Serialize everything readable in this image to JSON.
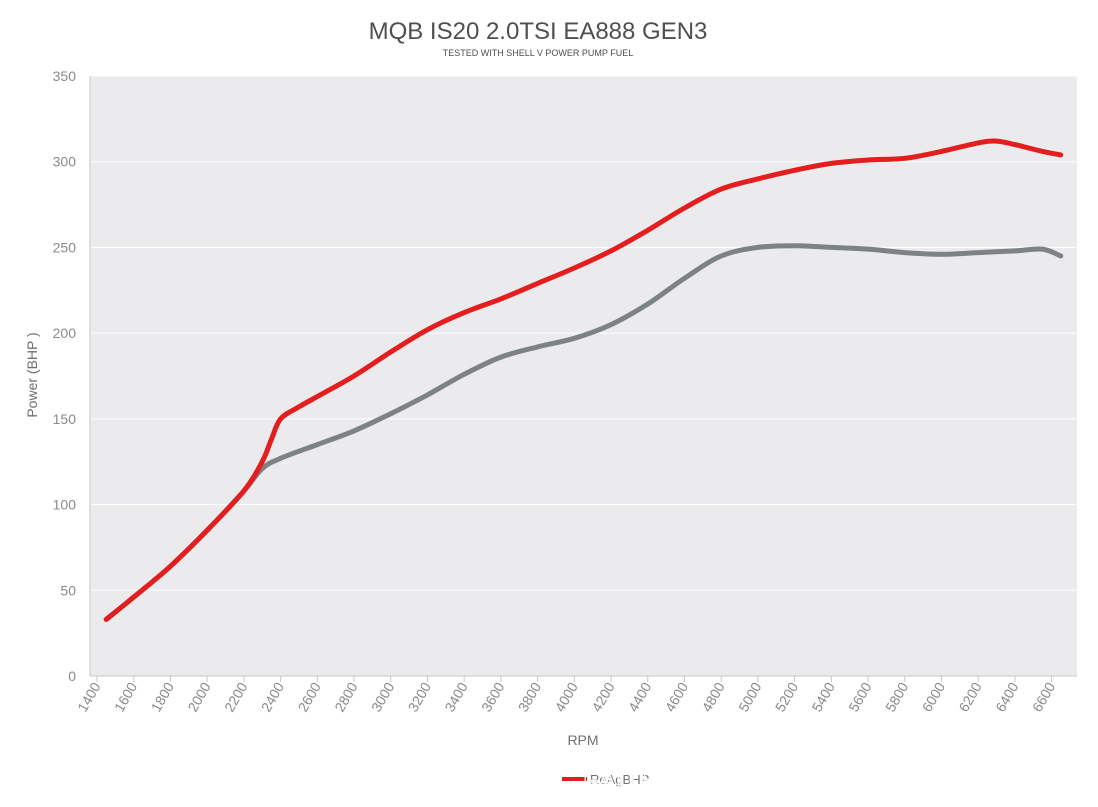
{
  "chart_data": {
    "type": "line",
    "title": "MQB IS20 2.0TSI EA888  GEN3",
    "subtitle": "TESTED WITH SHELL V POWER PUMP FUEL",
    "xlabel": "RPM",
    "ylabel": "Power (BHP )",
    "ylim": [
      0,
      350
    ],
    "yticks": [
      0,
      50,
      100,
      150,
      200,
      250,
      300,
      350
    ],
    "xlim": [
      1400,
      6700
    ],
    "xticks": [
      1400,
      1600,
      1800,
      2000,
      2200,
      2400,
      2600,
      2800,
      3000,
      3200,
      3400,
      3600,
      3800,
      4000,
      4200,
      4400,
      4600,
      4800,
      5000,
      5200,
      5400,
      5600,
      5800,
      6000,
      6200,
      6400,
      6600
    ],
    "grid": true,
    "legend_position": "bottom-center",
    "background_color": "#ebebed",
    "series": [
      {
        "name": "",
        "color": "#7d8285",
        "x": [
          1450,
          1600,
          1800,
          2000,
          2200,
          2300,
          2400,
          2600,
          2800,
          3000,
          3200,
          3400,
          3600,
          3800,
          4000,
          4200,
          4400,
          4600,
          4800,
          5000,
          5200,
          5400,
          5600,
          5800,
          6000,
          6200,
          6400,
          6550,
          6650
        ],
        "y": [
          33,
          46,
          64,
          85,
          108,
          121,
          127,
          135,
          143,
          153,
          164,
          176,
          186,
          192,
          197,
          205,
          217,
          232,
          245,
          250,
          251,
          250,
          249,
          247,
          246,
          247,
          248,
          249,
          245
        ]
      },
      {
        "name": "ReAgBHP",
        "color": "#e41e1e",
        "x": [
          1450,
          1600,
          1800,
          2000,
          2200,
          2300,
          2350,
          2400,
          2500,
          2600,
          2800,
          3000,
          3200,
          3400,
          3600,
          3800,
          4000,
          4200,
          4400,
          4600,
          4800,
          5000,
          5200,
          5400,
          5600,
          5800,
          6000,
          6200,
          6300,
          6400,
          6550,
          6650
        ],
        "y": [
          33,
          46,
          64,
          85,
          108,
          125,
          138,
          150,
          157,
          163,
          175,
          189,
          202,
          212,
          220,
          229,
          238,
          248,
          260,
          273,
          284,
          290,
          295,
          299,
          301,
          302,
          306,
          311,
          312,
          310,
          306,
          304
        ]
      }
    ],
    "legend": [
      {
        "label": "ReAgBHP",
        "color": "#e41e1e"
      }
    ],
    "watermark_text": "FAITH_Club"
  }
}
